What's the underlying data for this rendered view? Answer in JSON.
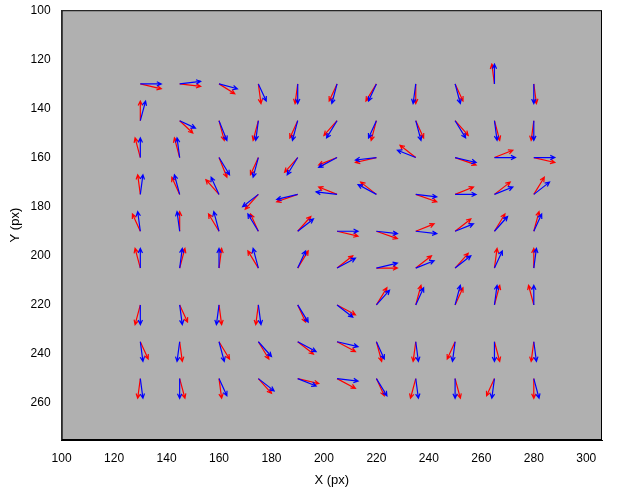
{
  "chart_data": {
    "type": "quiver",
    "x_label": "X (px)",
    "y_label": "Y (px)",
    "xlim": [
      100,
      306
    ],
    "ylim": [
      100,
      275
    ],
    "xticks": [
      100,
      120,
      140,
      160,
      180,
      200,
      220,
      240,
      260,
      280,
      300
    ],
    "yticks": [
      100,
      120,
      140,
      160,
      180,
      200,
      220,
      240,
      260
    ],
    "grid": false,
    "series": [
      {
        "color": "#ff0000",
        "x": [
          130,
          145,
          160,
          175,
          190,
          205,
          220,
          235,
          250,
          265,
          280,
          130,
          145,
          160,
          175,
          190,
          205,
          220,
          235,
          250,
          265,
          280,
          130,
          145,
          160,
          175,
          190,
          205,
          220,
          235,
          250,
          265,
          280,
          130,
          145,
          160,
          175,
          190,
          205,
          220,
          235,
          250,
          265,
          280,
          130,
          145,
          160,
          175,
          190,
          205,
          220,
          235,
          250,
          265,
          280,
          130,
          145,
          160,
          175,
          190,
          205,
          220,
          235,
          250,
          265,
          280,
          130,
          145,
          160,
          175,
          190,
          205,
          220,
          235,
          250,
          265,
          280,
          130,
          145,
          160,
          175,
          190,
          205,
          220,
          235,
          250,
          265,
          280,
          130,
          145,
          160,
          175,
          190,
          205,
          220,
          235,
          250,
          265,
          280
        ],
        "y": [
          130,
          130,
          130,
          130,
          130,
          130,
          130,
          130,
          130,
          130,
          130,
          145,
          145,
          145,
          145,
          145,
          145,
          145,
          145,
          145,
          145,
          145,
          160,
          160,
          160,
          160,
          160,
          160,
          160,
          160,
          160,
          160,
          160,
          175,
          175,
          175,
          175,
          175,
          175,
          175,
          175,
          175,
          175,
          175,
          190,
          190,
          190,
          190,
          190,
          190,
          190,
          190,
          190,
          190,
          190,
          205,
          205,
          205,
          205,
          205,
          205,
          205,
          205,
          205,
          205,
          205,
          220,
          220,
          220,
          220,
          220,
          220,
          220,
          220,
          220,
          220,
          220,
          235,
          235,
          235,
          235,
          235,
          235,
          235,
          235,
          235,
          235,
          235,
          250,
          250,
          250,
          250,
          250,
          250,
          250,
          250,
          250,
          250,
          250
        ],
        "u": [
          8,
          8,
          6,
          1,
          -1,
          -3,
          -4,
          0,
          3,
          -1,
          1,
          0,
          5,
          2,
          -2,
          -3,
          -5,
          -2,
          3,
          5,
          2,
          -1,
          -2,
          -2,
          3,
          -3,
          -5,
          -7,
          -8,
          -6,
          8,
          7,
          8,
          -1,
          -3,
          -5,
          -5,
          -8,
          -7,
          -6,
          8,
          7,
          6,
          4,
          -3,
          0,
          -4,
          -3,
          5,
          8,
          8,
          7,
          6,
          4,
          2,
          -2,
          2,
          1,
          -4,
          4,
          6,
          8,
          6,
          5,
          1,
          0,
          -2,
          3,
          1,
          -1,
          3,
          7,
          4,
          2,
          3,
          2,
          -2,
          3,
          1,
          4,
          4,
          6,
          7,
          2,
          -1,
          -3,
          2,
          -1,
          -1,
          2,
          1,
          5,
          8,
          7,
          3,
          -2,
          2,
          -3,
          0
        ],
        "v": [
          2,
          1,
          4,
          8,
          8,
          7,
          7,
          8,
          7,
          -8,
          8,
          -8,
          5,
          8,
          8,
          7,
          6,
          8,
          7,
          6,
          8,
          8,
          -8,
          -8,
          8,
          7,
          6,
          3,
          2,
          -5,
          3,
          -3,
          2,
          -8,
          -7,
          -6,
          6,
          3,
          -3,
          -5,
          3,
          -3,
          -5,
          -7,
          -7,
          -8,
          -7,
          -7,
          -6,
          2,
          3,
          -3,
          -5,
          -7,
          -8,
          -8,
          -8,
          -8,
          -7,
          -7,
          -5,
          0,
          -5,
          -6,
          -8,
          -8,
          8,
          7,
          8,
          8,
          7,
          4,
          -7,
          -8,
          -7,
          -8,
          -8,
          7,
          8,
          7,
          7,
          5,
          4,
          8,
          8,
          7,
          8,
          8,
          8,
          8,
          8,
          6,
          2,
          4,
          7,
          8,
          8,
          7,
          8
        ]
      },
      {
        "color": "#0000ff",
        "x": [
          130,
          145,
          160,
          175,
          190,
          205,
          220,
          235,
          250,
          265,
          280,
          130,
          145,
          160,
          175,
          190,
          205,
          220,
          235,
          250,
          265,
          280,
          130,
          145,
          160,
          175,
          190,
          205,
          220,
          235,
          250,
          265,
          280,
          130,
          145,
          160,
          175,
          190,
          205,
          220,
          235,
          250,
          265,
          280,
          130,
          145,
          160,
          175,
          190,
          205,
          220,
          235,
          250,
          265,
          280,
          130,
          145,
          160,
          175,
          190,
          205,
          220,
          235,
          250,
          265,
          280,
          130,
          145,
          160,
          175,
          190,
          205,
          220,
          235,
          250,
          265,
          280,
          130,
          145,
          160,
          175,
          190,
          205,
          220,
          235,
          250,
          265,
          280,
          130,
          145,
          160,
          175,
          190,
          205,
          220,
          235,
          250,
          265,
          280
        ],
        "y": [
          130,
          130,
          130,
          130,
          130,
          130,
          130,
          130,
          130,
          130,
          130,
          145,
          145,
          145,
          145,
          145,
          145,
          145,
          145,
          145,
          145,
          145,
          160,
          160,
          160,
          160,
          160,
          160,
          160,
          160,
          160,
          160,
          160,
          175,
          175,
          175,
          175,
          175,
          175,
          175,
          175,
          175,
          175,
          175,
          190,
          190,
          190,
          190,
          190,
          190,
          190,
          190,
          190,
          190,
          190,
          205,
          205,
          205,
          205,
          205,
          205,
          205,
          205,
          205,
          205,
          205,
          220,
          220,
          220,
          220,
          220,
          220,
          220,
          220,
          220,
          220,
          220,
          235,
          235,
          235,
          235,
          235,
          235,
          235,
          235,
          235,
          235,
          235,
          250,
          250,
          250,
          250,
          250,
          250,
          250,
          250,
          250,
          250,
          250
        ],
        "u": [
          8,
          8,
          7,
          3,
          0,
          -2,
          -3,
          -1,
          2,
          0,
          0,
          2,
          6,
          3,
          -1,
          -2,
          -4,
          -3,
          2,
          4,
          1,
          0,
          0,
          -1,
          4,
          -2,
          -4,
          -7,
          -8,
          -7,
          8,
          8,
          8,
          1,
          -2,
          -3,
          -6,
          -8,
          -8,
          -7,
          8,
          8,
          7,
          6,
          -1,
          -1,
          -2,
          -4,
          6,
          8,
          8,
          8,
          7,
          5,
          3,
          0,
          1,
          0,
          -2,
          3,
          7,
          8,
          7,
          6,
          3,
          1,
          0,
          1,
          -1,
          1,
          4,
          6,
          5,
          3,
          2,
          1,
          0,
          1,
          -1,
          2,
          5,
          7,
          8,
          3,
          1,
          -1,
          0,
          1,
          1,
          0,
          3,
          6,
          7,
          8,
          4,
          1,
          0,
          -1,
          2
        ],
        "v": [
          0,
          -1,
          2,
          7,
          8,
          8,
          7,
          8,
          8,
          -8,
          8,
          -8,
          3,
          8,
          8,
          8,
          7,
          7,
          8,
          7,
          8,
          8,
          -8,
          -8,
          7,
          8,
          7,
          4,
          1,
          -3,
          2,
          0,
          0,
          -8,
          -8,
          -7,
          5,
          2,
          -1,
          -4,
          1,
          0,
          -3,
          -5,
          -8,
          -8,
          -8,
          -7,
          -5,
          0,
          1,
          1,
          -3,
          -6,
          -7,
          -8,
          -8,
          -8,
          -8,
          -7,
          -4,
          -2,
          -3,
          -5,
          -7,
          -8,
          8,
          8,
          8,
          8,
          7,
          5,
          -6,
          -7,
          -8,
          -8,
          -8,
          8,
          8,
          8,
          6,
          4,
          2,
          7,
          8,
          8,
          8,
          8,
          8,
          8,
          7,
          5,
          3,
          1,
          7,
          8,
          8,
          8,
          8
        ]
      }
    ]
  }
}
